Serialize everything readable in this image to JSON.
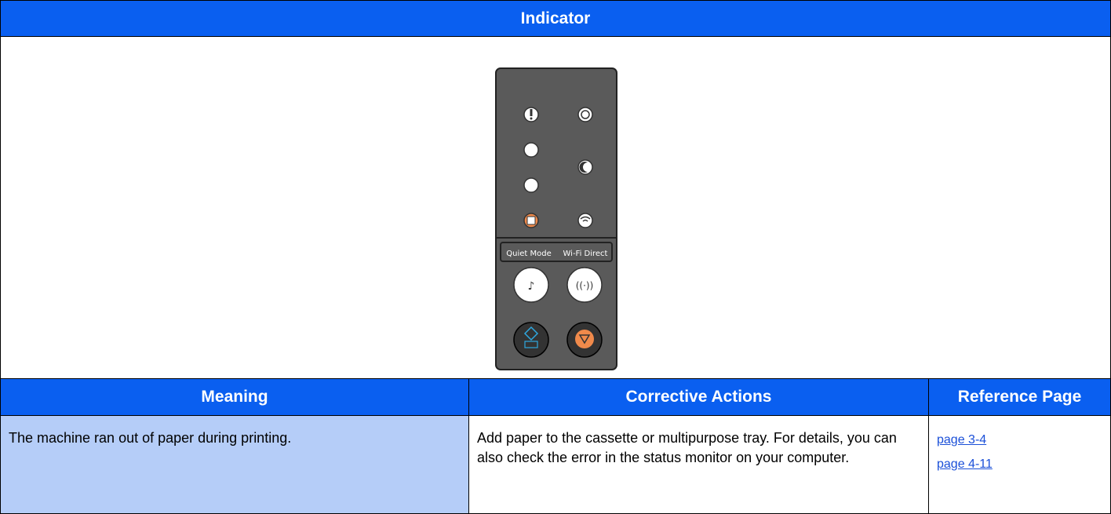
{
  "header": {
    "title": "Indicator"
  },
  "panel": {
    "labels": [
      "Quiet Mode",
      "Wi-Fi Direct"
    ]
  },
  "table": {
    "columns": [
      "Meaning",
      "Corrective Actions",
      "Reference Page"
    ],
    "rows": [
      [
        "The machine ran out of paper during printing.",
        "Add paper to the cassette or multipurpose tray. For details, you can also check the error in the status monitor on your computer.",
        [
          "page 3-4",
          "page 4-11"
        ]
      ]
    ]
  }
}
